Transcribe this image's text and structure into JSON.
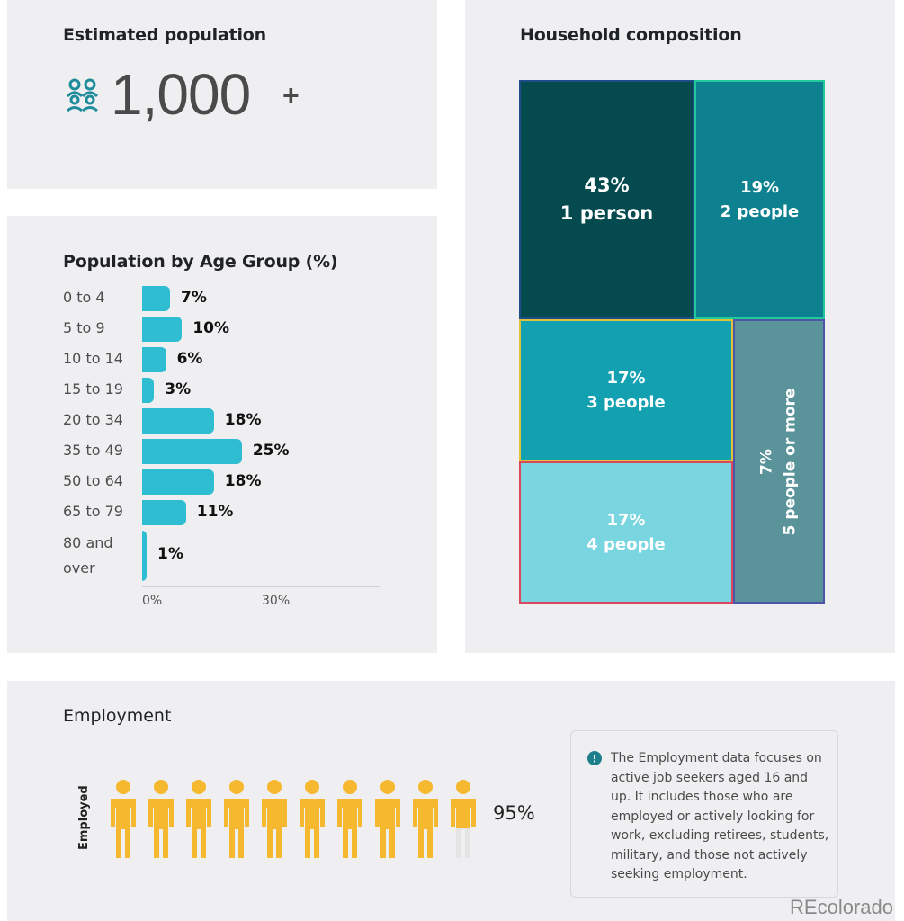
{
  "estimated_population": {
    "title": "Estimated population",
    "value": "1,000",
    "suffix": "+",
    "icon": "people-group-icon"
  },
  "household": {
    "title": "Household composition"
  },
  "age": {
    "title": "Population by Age Group (%)"
  },
  "employment": {
    "title": "Employment",
    "axis_label": "Employed",
    "value_label": "95%",
    "note_icon": "info-icon",
    "note": "The Employment data focuses on active job seekers aged 16 and up. It includes those who are employed or actively looking for work, excluding retirees, students, military, and those not actively seeking employment."
  },
  "watermark": "REcolorado",
  "colors": {
    "bar": "#2fbed1",
    "employed": "#f5b82e",
    "not_employed": "#e4e4e4",
    "teal_icon": "#1e8c9a"
  },
  "chart_data": [
    {
      "type": "bar",
      "orientation": "horizontal",
      "title": "Population by Age Group (%)",
      "categories": [
        "0 to 4",
        "5 to 9",
        "10 to 14",
        "15 to 19",
        "20 to 34",
        "35 to 49",
        "50 to 64",
        "65 to 79",
        "80 and over"
      ],
      "values": [
        7,
        10,
        6,
        3,
        18,
        25,
        18,
        11,
        1
      ],
      "value_labels": [
        "7%",
        "10%",
        "6%",
        "3%",
        "18%",
        "25%",
        "18%",
        "11%",
        "1%"
      ],
      "xticks": [
        "0%",
        "30%"
      ],
      "xlim": [
        0,
        30
      ],
      "grid": false
    },
    {
      "type": "treemap",
      "title": "Household composition",
      "items": [
        {
          "pct": "43%",
          "label": "1 person",
          "value": 43,
          "color": "#054a4e",
          "border": "#1e4d8a"
        },
        {
          "pct": "19%",
          "label": "2 people",
          "value": 19,
          "color": "#0d8190",
          "border": "#22c99a"
        },
        {
          "pct": "17%",
          "label": "3 people",
          "value": 17,
          "color": "#13a1b1",
          "border": "#e0c23a"
        },
        {
          "pct": "17%",
          "label": "4 people",
          "value": 17,
          "color": "#79d5e0",
          "border": "#d9485e"
        },
        {
          "pct": "7%",
          "label": "5 people or more",
          "value": 7,
          "color": "#5a939a",
          "border": "#4b56a8"
        }
      ]
    },
    {
      "type": "pictogram",
      "title": "Employment",
      "series": [
        {
          "name": "Employed",
          "values": [
            95
          ]
        }
      ],
      "icons": 10
    }
  ]
}
